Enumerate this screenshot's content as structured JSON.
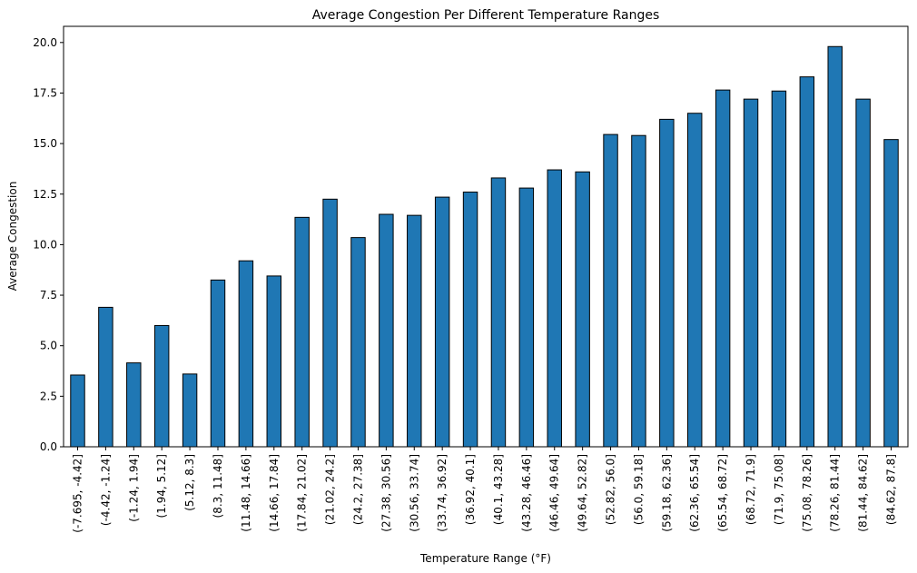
{
  "chart_data": {
    "type": "bar",
    "title": "Average Congestion Per Different Temperature Ranges",
    "xlabel": "Temperature Range (°F)",
    "ylabel": "Average Congestion",
    "ylim": [
      0,
      20.8
    ],
    "yticks": [
      "0.0",
      "2.5",
      "5.0",
      "7.5",
      "10.0",
      "12.5",
      "15.0",
      "17.5",
      "20.0"
    ],
    "bar_color": "#1f77b4",
    "edge_color": "#000000",
    "grid": false,
    "categories": [
      "(-7.695, -4.42]",
      "(-4.42, -1.24]",
      "(-1.24, 1.94]",
      "(1.94, 5.12]",
      "(5.12, 8.3]",
      "(8.3, 11.48]",
      "(11.48, 14.66]",
      "(14.66, 17.84]",
      "(17.84, 21.02]",
      "(21.02, 24.2]",
      "(24.2, 27.38]",
      "(27.38, 30.56]",
      "(30.56, 33.74]",
      "(33.74, 36.92]",
      "(36.92, 40.1]",
      "(40.1, 43.28]",
      "(43.28, 46.46]",
      "(46.46, 49.64]",
      "(49.64, 52.82]",
      "(52.82, 56.0]",
      "(56.0, 59.18]",
      "(59.18, 62.36]",
      "(62.36, 65.54]",
      "(65.54, 68.72]",
      "(68.72, 71.9]",
      "(71.9, 75.08]",
      "(75.08, 78.26]",
      "(78.26, 81.44]",
      "(81.44, 84.62]",
      "(84.62, 87.8]"
    ],
    "values": [
      3.55,
      6.9,
      4.15,
      6.0,
      3.6,
      8.25,
      9.2,
      8.45,
      11.35,
      12.25,
      10.35,
      11.5,
      11.45,
      12.35,
      12.6,
      13.3,
      12.8,
      13.7,
      13.6,
      15.45,
      15.4,
      16.2,
      16.5,
      17.65,
      17.2,
      17.6,
      18.3,
      19.8,
      17.2,
      15.2
    ]
  }
}
